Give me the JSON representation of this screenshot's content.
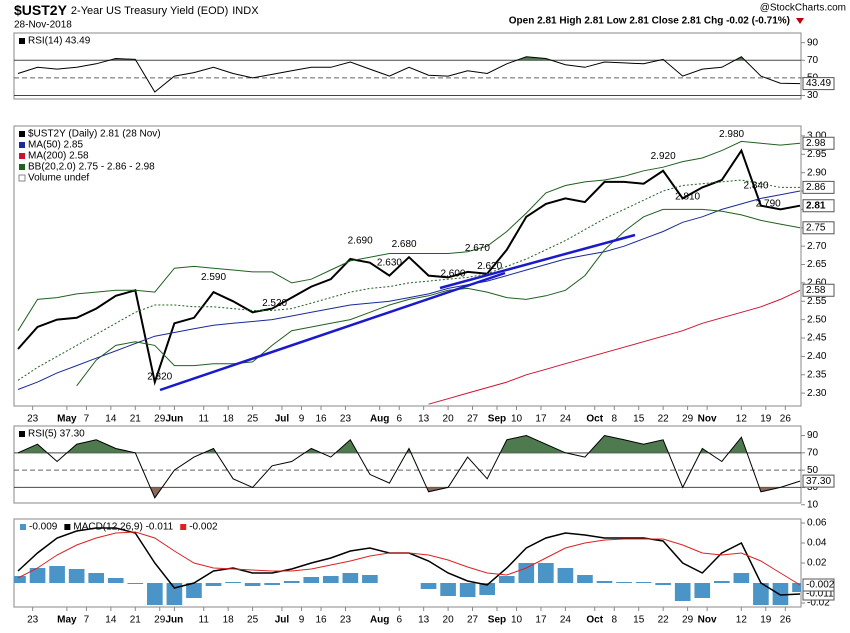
{
  "header": {
    "symbol": "$UST2Y",
    "name": "2-Year US Treasury Yield (EOD)",
    "exchange": "INDX",
    "date": "28-Nov-2018",
    "quote": "Open 2.81 High 2.81 Low 2.81 Close 2.81 Chg -0.02 (-0.71%)",
    "watermark": "@StockCharts.com"
  },
  "chart_data": [
    {
      "type": "line",
      "title": "RSI(14) 43.49",
      "x": [
        0,
        4,
        8,
        12,
        16,
        20,
        24,
        28,
        32,
        36,
        40,
        44,
        48,
        52,
        56,
        60,
        64,
        68,
        72,
        76,
        80,
        84,
        88,
        92,
        96,
        100,
        104,
        108,
        112,
        116,
        120,
        124,
        128,
        132,
        136,
        140,
        144,
        148,
        152,
        156,
        160
      ],
      "xlim": [
        0,
        160
      ],
      "ylim": [
        26,
        101
      ],
      "yticks": [
        90,
        70,
        50,
        30
      ],
      "thresholds": [
        70,
        30
      ],
      "midline": 50,
      "series": [
        {
          "color": "#000000",
          "end_label": "43.49",
          "values": [
            55,
            62,
            60,
            62,
            66,
            72,
            71,
            34,
            52,
            56,
            62,
            55,
            50,
            54,
            58,
            62,
            62,
            68,
            60,
            52,
            62,
            53,
            52,
            58,
            55,
            66,
            74,
            72,
            65,
            62,
            68,
            67,
            66,
            71,
            52,
            60,
            62,
            74,
            52,
            44,
            43.49
          ]
        }
      ]
    },
    {
      "type": "line",
      "x": [
        0,
        4,
        8,
        12,
        16,
        20,
        24,
        28,
        32,
        36,
        40,
        44,
        48,
        52,
        56,
        60,
        64,
        68,
        72,
        76,
        80,
        84,
        88,
        92,
        96,
        100,
        104,
        108,
        112,
        116,
        120,
        124,
        128,
        132,
        136,
        140,
        144,
        148,
        152,
        156,
        160
      ],
      "xlim": [
        0,
        160
      ],
      "ylim": [
        2.265,
        3.027
      ],
      "yticks": [
        {
          "value": 2.3,
          "label": "2.30"
        },
        2.35,
        {
          "value": 2.4,
          "label": "2.40"
        },
        2.45,
        {
          "value": 2.5,
          "label": "2.50"
        },
        2.55,
        {
          "value": 2.6,
          "label": "2.60"
        },
        2.65,
        {
          "value": 2.7,
          "label": "2.70"
        },
        2.75,
        {
          "value": 2.8,
          "label": "2.80"
        },
        2.85,
        {
          "value": 2.9,
          "label": "2.90"
        },
        2.95,
        {
          "value": 3.0,
          "label": "3.00"
        }
      ],
      "xticks": [
        {
          "value": 3,
          "label": "23"
        },
        {
          "value": 10,
          "label": "May"
        },
        {
          "value": 14,
          "label": "7"
        },
        {
          "value": 19,
          "label": "14"
        },
        {
          "value": 24,
          "label": "21"
        },
        {
          "value": 29,
          "label": "29"
        },
        {
          "value": 32,
          "label": "Jun"
        },
        {
          "value": 38,
          "label": "11"
        },
        {
          "value": 43,
          "label": "18"
        },
        {
          "value": 48,
          "label": "25"
        },
        {
          "value": 54,
          "label": "Jul"
        },
        {
          "value": 58,
          "label": "9"
        },
        {
          "value": 62,
          "label": "16"
        },
        {
          "value": 67,
          "label": "23"
        },
        {
          "value": 74,
          "label": "Aug"
        },
        {
          "value": 78,
          "label": "6"
        },
        {
          "value": 83,
          "label": "13"
        },
        {
          "value": 88,
          "label": "20"
        },
        {
          "value": 93,
          "label": "27"
        },
        {
          "value": 98,
          "label": "Sep"
        },
        {
          "value": 102,
          "label": "10"
        },
        {
          "value": 107,
          "label": "17"
        },
        {
          "value": 112,
          "label": "24"
        },
        {
          "value": 118,
          "label": "Oct"
        },
        {
          "value": 122,
          "label": "8"
        },
        {
          "value": 127,
          "label": "15"
        },
        {
          "value": 132,
          "label": "22"
        },
        {
          "value": 137,
          "label": "29"
        },
        {
          "value": 141,
          "label": "Nov"
        },
        {
          "value": 148,
          "label": "12"
        },
        {
          "value": 153,
          "label": "19"
        },
        {
          "value": 157,
          "label": "26"
        }
      ],
      "legend_extra": "Volume undef",
      "series": [
        {
          "name": "$UST2Y (Daily) 2.81 (28 Nov)",
          "color": "#000000",
          "width": 2,
          "end_label": "2.81",
          "values": [
            2.42,
            2.48,
            2.5,
            2.505,
            2.53,
            2.565,
            2.58,
            2.33,
            2.49,
            2.505,
            2.575,
            2.55,
            2.52,
            2.53,
            2.56,
            2.59,
            2.61,
            2.665,
            2.655,
            2.62,
            2.67,
            2.62,
            2.615,
            2.63,
            2.625,
            2.69,
            2.78,
            2.815,
            2.83,
            2.82,
            2.875,
            2.875,
            2.87,
            2.905,
            2.83,
            2.86,
            2.88,
            2.96,
            2.81,
            2.8,
            2.81
          ]
        },
        {
          "name": "MA(50) 2.85",
          "color": "#1a2a9a",
          "width": 1,
          "values": [
            2.31,
            2.33,
            2.355,
            2.375,
            2.395,
            2.415,
            2.435,
            2.455,
            2.465,
            2.475,
            2.485,
            2.49,
            2.495,
            2.5,
            2.51,
            2.52,
            2.53,
            2.54,
            2.545,
            2.55,
            2.56,
            2.57,
            2.585,
            2.595,
            2.605,
            2.62,
            2.635,
            2.65,
            2.665,
            2.675,
            2.685,
            2.7,
            2.72,
            2.74,
            2.765,
            2.78,
            2.8,
            2.815,
            2.83,
            2.84,
            2.85
          ]
        },
        {
          "name": "MA(200) 2.58",
          "color": "#d01030",
          "width": 1,
          "end_label": "2.58",
          "values": [
            null,
            null,
            null,
            null,
            null,
            null,
            null,
            null,
            null,
            null,
            null,
            null,
            null,
            null,
            null,
            null,
            null,
            null,
            null,
            null,
            null,
            2.27,
            2.285,
            2.3,
            2.315,
            2.33,
            2.35,
            2.365,
            2.38,
            2.395,
            2.41,
            2.425,
            2.44,
            2.455,
            2.47,
            2.49,
            2.505,
            2.52,
            2.535,
            2.555,
            2.58
          ]
        },
        {
          "name": "BB(20,2.0) 2.75 - 2.86 - 2.98",
          "color": "#206020",
          "width": 1,
          "end_label": "2.98",
          "values": [
            2.47,
            2.555,
            2.56,
            2.57,
            2.575,
            2.58,
            2.58,
            2.575,
            2.64,
            2.645,
            2.64,
            2.635,
            2.63,
            2.63,
            2.6,
            2.61,
            2.635,
            2.66,
            2.67,
            2.68,
            2.68,
            2.68,
            2.68,
            2.685,
            2.7,
            2.74,
            2.79,
            2.845,
            2.865,
            2.875,
            2.88,
            2.89,
            2.905,
            2.915,
            2.93,
            2.94,
            2.96,
            2.985,
            2.98,
            2.975,
            2.98
          ]
        },
        {
          "color": "#206020",
          "width": 1,
          "dash": true,
          "end_label": "2.86",
          "values": [
            2.335,
            2.37,
            2.4,
            2.43,
            2.46,
            2.49,
            2.52,
            2.54,
            2.54,
            2.535,
            2.535,
            2.53,
            2.525,
            2.525,
            2.53,
            2.545,
            2.56,
            2.575,
            2.585,
            2.59,
            2.6,
            2.605,
            2.61,
            2.615,
            2.625,
            2.645,
            2.665,
            2.69,
            2.715,
            2.745,
            2.775,
            2.8,
            2.825,
            2.85,
            2.865,
            2.87,
            2.875,
            2.88,
            2.87,
            2.86,
            2.86
          ]
        },
        {
          "color": "#206020",
          "width": 1,
          "end_label": "2.75",
          "values": [
            null,
            null,
            null,
            2.32,
            2.39,
            2.43,
            2.44,
            2.43,
            2.375,
            2.375,
            2.38,
            2.38,
            2.385,
            2.43,
            2.47,
            2.48,
            2.49,
            2.5,
            2.52,
            2.54,
            2.555,
            2.565,
            2.58,
            2.585,
            2.575,
            2.56,
            2.555,
            2.565,
            2.58,
            2.62,
            2.69,
            2.74,
            2.78,
            2.8,
            2.8,
            2.8,
            2.795,
            2.785,
            2.77,
            2.76,
            2.75
          ]
        }
      ],
      "annotations": [
        {
          "x": 29,
          "value": 2.32,
          "label": "2.320"
        },
        {
          "x": 40,
          "value": 2.59,
          "label": "2.590"
        },
        {
          "x": 52.5,
          "value": 2.52,
          "label": "2.520"
        },
        {
          "x": 70,
          "value": 2.69,
          "label": "2.690"
        },
        {
          "x": 79,
          "value": 2.68,
          "label": "2.680"
        },
        {
          "x": 76,
          "value": 2.63,
          "label": "2.630"
        },
        {
          "x": 89,
          "value": 2.6,
          "label": "2.600"
        },
        {
          "x": 94,
          "value": 2.67,
          "label": "2.670"
        },
        {
          "x": 96.5,
          "value": 2.62,
          "label": "2.620"
        },
        {
          "x": 132,
          "value": 2.92,
          "label": "2.920"
        },
        {
          "x": 146,
          "value": 2.98,
          "label": "2.980"
        },
        {
          "x": 137,
          "value": 2.81,
          "label": "2.810"
        },
        {
          "x": 151,
          "value": 2.84,
          "label": "2.840"
        },
        {
          "x": 153.5,
          "value": 2.79,
          "label": "2.790"
        }
      ]
    },
    {
      "type": "line",
      "title": "RSI(5) 37.30",
      "x": [
        0,
        4,
        8,
        12,
        16,
        20,
        24,
        28,
        32,
        36,
        40,
        44,
        48,
        52,
        56,
        60,
        64,
        68,
        72,
        76,
        80,
        84,
        88,
        92,
        96,
        100,
        104,
        108,
        112,
        116,
        120,
        124,
        128,
        132,
        136,
        140,
        144,
        148,
        152,
        156,
        160
      ],
      "xlim": [
        0,
        160
      ],
      "ylim": [
        12,
        101
      ],
      "yticks": [
        90,
        70,
        50,
        30,
        10
      ],
      "thresholds": [
        70,
        30
      ],
      "midline": 50,
      "series": [
        {
          "color": "#000000",
          "end_label": "37.30",
          "values": [
            70,
            80,
            60,
            80,
            85,
            75,
            70,
            18,
            50,
            65,
            75,
            40,
            30,
            55,
            60,
            75,
            65,
            85,
            45,
            35,
            75,
            25,
            30,
            65,
            40,
            85,
            90,
            80,
            70,
            65,
            90,
            85,
            80,
            85,
            30,
            75,
            60,
            88,
            25,
            30,
            37.3
          ]
        }
      ]
    },
    {
      "type": "line",
      "x": [
        0,
        4,
        8,
        12,
        16,
        20,
        24,
        28,
        32,
        36,
        40,
        44,
        48,
        52,
        56,
        60,
        64,
        68,
        72,
        76,
        80,
        84,
        88,
        92,
        96,
        100,
        104,
        108,
        112,
        116,
        120,
        124,
        128,
        132,
        136,
        140,
        144,
        148,
        152,
        156,
        160
      ],
      "xlim": [
        0,
        160
      ],
      "ylim": [
        -0.024,
        0.064
      ],
      "yticks": [
        0.06,
        0.04,
        0.02,
        -0.02
      ],
      "xticks": [
        {
          "value": 3,
          "label": "23"
        },
        {
          "value": 10,
          "label": "May"
        },
        {
          "value": 14,
          "label": "7"
        },
        {
          "value": 19,
          "label": "14"
        },
        {
          "value": 24,
          "label": "21"
        },
        {
          "value": 29,
          "label": "29"
        },
        {
          "value": 32,
          "label": "Jun"
        },
        {
          "value": 38,
          "label": "11"
        },
        {
          "value": 43,
          "label": "18"
        },
        {
          "value": 48,
          "label": "25"
        },
        {
          "value": 54,
          "label": "Jul"
        },
        {
          "value": 58,
          "label": "9"
        },
        {
          "value": 62,
          "label": "16"
        },
        {
          "value": 67,
          "label": "23"
        },
        {
          "value": 74,
          "label": "Aug"
        },
        {
          "value": 78,
          "label": "6"
        },
        {
          "value": 83,
          "label": "13"
        },
        {
          "value": 88,
          "label": "20"
        },
        {
          "value": 93,
          "label": "27"
        },
        {
          "value": 98,
          "label": "Sep"
        },
        {
          "value": 102,
          "label": "10"
        },
        {
          "value": 107,
          "label": "17"
        },
        {
          "value": 112,
          "label": "24"
        },
        {
          "value": 118,
          "label": "Oct"
        },
        {
          "value": 122,
          "label": "8"
        },
        {
          "value": 127,
          "label": "15"
        },
        {
          "value": 132,
          "label": "22"
        },
        {
          "value": 137,
          "label": "29"
        },
        {
          "value": 141,
          "label": "Nov"
        },
        {
          "value": 148,
          "label": "12"
        },
        {
          "value": 153,
          "label": "19"
        },
        {
          "value": 157,
          "label": "26"
        }
      ],
      "series": [
        {
          "name": "-0.009",
          "kind": "bar",
          "color": "#4a94c8",
          "values": [
            0.007,
            0.015,
            0.017,
            0.014,
            0.01,
            0.005,
            -0.001,
            -0.022,
            -0.022,
            -0.015,
            -0.003,
            0.001,
            -0.003,
            -0.002,
            0.002,
            0.006,
            0.007,
            0.01,
            0.008,
            0.0,
            0.0,
            -0.006,
            -0.013,
            -0.014,
            -0.012,
            0.007,
            0.02,
            0.02,
            0.015,
            0.008,
            0.002,
            0.001,
            0.001,
            -0.002,
            -0.018,
            -0.015,
            0.002,
            0.01,
            -0.022,
            -0.022,
            -0.009
          ]
        },
        {
          "name": "MACD(12,26,9) -0.011",
          "color": "#000000",
          "width": 1.5,
          "end_label": "-0.011",
          "values": [
            0.012,
            0.03,
            0.045,
            0.052,
            0.055,
            0.055,
            0.05,
            0.02,
            -0.005,
            0.0,
            0.012,
            0.015,
            0.01,
            0.01,
            0.014,
            0.02,
            0.025,
            0.032,
            0.035,
            0.03,
            0.03,
            0.022,
            0.01,
            0.002,
            -0.002,
            0.015,
            0.035,
            0.045,
            0.05,
            0.048,
            0.045,
            0.045,
            0.045,
            0.042,
            0.02,
            0.01,
            0.03,
            0.04,
            0.0,
            -0.012,
            -0.011
          ]
        },
        {
          "name": "-0.002",
          "color": "#e02020",
          "width": 1,
          "end_label": "-0.002",
          "values": [
            0.005,
            0.015,
            0.028,
            0.038,
            0.045,
            0.05,
            0.051,
            0.045,
            0.032,
            0.02,
            0.015,
            0.014,
            0.013,
            0.012,
            0.012,
            0.014,
            0.018,
            0.022,
            0.027,
            0.03,
            0.03,
            0.028,
            0.023,
            0.016,
            0.01,
            0.008,
            0.015,
            0.025,
            0.035,
            0.04,
            0.043,
            0.044,
            0.044,
            0.044,
            0.038,
            0.03,
            0.028,
            0.03,
            0.022,
            0.01,
            -0.002
          ]
        }
      ]
    }
  ]
}
